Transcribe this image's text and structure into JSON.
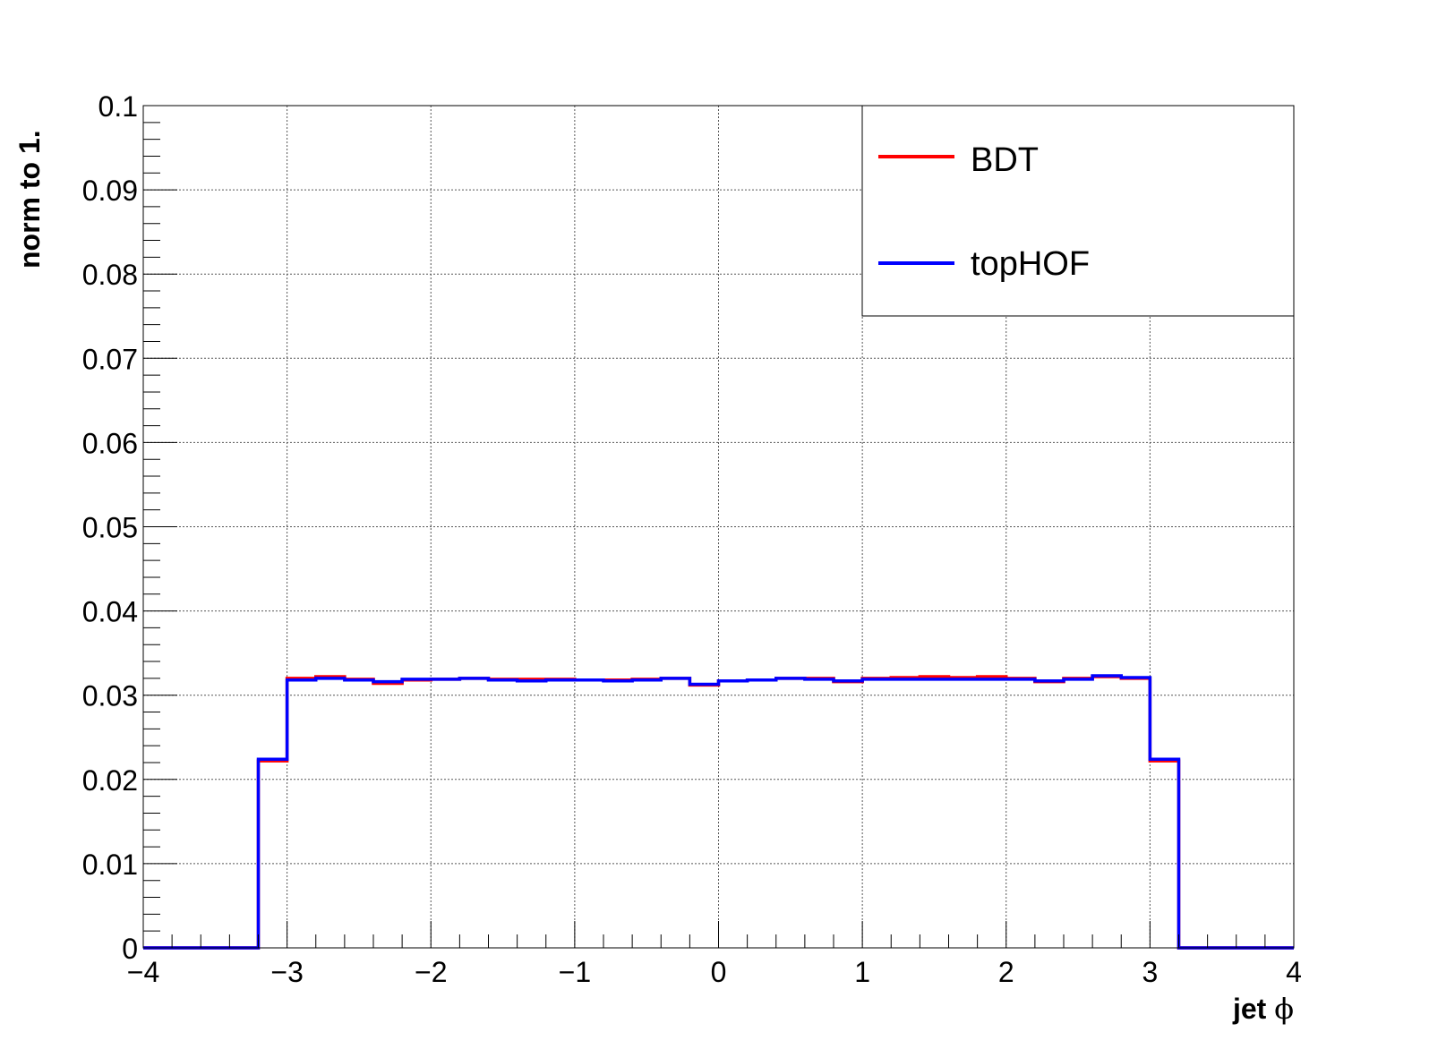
{
  "chart_data": {
    "type": "line",
    "step": true,
    "xlabel": "jet",
    "xlabel_symbol": "ϕ",
    "ylabel": "norm to 1.",
    "xlim": [
      -4,
      4
    ],
    "ylim": [
      0,
      0.1
    ],
    "grid": true,
    "legend_position": "top-right",
    "x_ticks": [
      -4,
      -3,
      -2,
      -1,
      0,
      1,
      2,
      3,
      4
    ],
    "x_tick_labels": [
      "−4",
      "−3",
      "−2",
      "−1",
      "0",
      "1",
      "2",
      "3",
      "4"
    ],
    "y_ticks": [
      0,
      0.01,
      0.02,
      0.03,
      0.04,
      0.05,
      0.06,
      0.07,
      0.08,
      0.09,
      0.1
    ],
    "y_tick_labels": [
      "0",
      "0.01",
      "0.02",
      "0.03",
      "0.04",
      "0.05",
      "0.06",
      "0.07",
      "0.08",
      "0.09",
      "0.1"
    ],
    "bin_edges": [
      -4.0,
      -3.8,
      -3.6,
      -3.4,
      -3.2,
      -3.0,
      -2.8,
      -2.6,
      -2.4,
      -2.2,
      -2.0,
      -1.8,
      -1.6,
      -1.4,
      -1.2,
      -1.0,
      -0.8,
      -0.6,
      -0.4,
      -0.2,
      0.0,
      0.2,
      0.4,
      0.6,
      0.8,
      1.0,
      1.2,
      1.4,
      1.6,
      1.8,
      2.0,
      2.2,
      2.4,
      2.6,
      2.8,
      3.0,
      3.2,
      3.4,
      3.6,
      3.8,
      4.0
    ],
    "series": [
      {
        "name": "BDT",
        "color": "#ff0000",
        "values": [
          0,
          0,
          0,
          0,
          0.0222,
          0.032,
          0.0322,
          0.0319,
          0.0314,
          0.0318,
          0.0319,
          0.032,
          0.0319,
          0.0319,
          0.0319,
          0.0318,
          0.0318,
          0.0319,
          0.032,
          0.0312,
          0.0317,
          0.0318,
          0.032,
          0.032,
          0.0316,
          0.032,
          0.0321,
          0.0322,
          0.0321,
          0.0322,
          0.032,
          0.0316,
          0.032,
          0.0322,
          0.032,
          0.0222,
          0,
          0,
          0,
          0
        ]
      },
      {
        "name": "topHOF",
        "color": "#0000ff",
        "values": [
          0,
          0,
          0,
          0,
          0.0224,
          0.0318,
          0.032,
          0.0318,
          0.0316,
          0.0319,
          0.0319,
          0.032,
          0.0318,
          0.0317,
          0.0318,
          0.0318,
          0.0317,
          0.0318,
          0.032,
          0.0313,
          0.0317,
          0.0318,
          0.032,
          0.0319,
          0.0317,
          0.0319,
          0.0319,
          0.0319,
          0.0319,
          0.0319,
          0.0319,
          0.0317,
          0.0319,
          0.0323,
          0.0321,
          0.0224,
          0,
          0,
          0,
          0
        ]
      }
    ]
  }
}
